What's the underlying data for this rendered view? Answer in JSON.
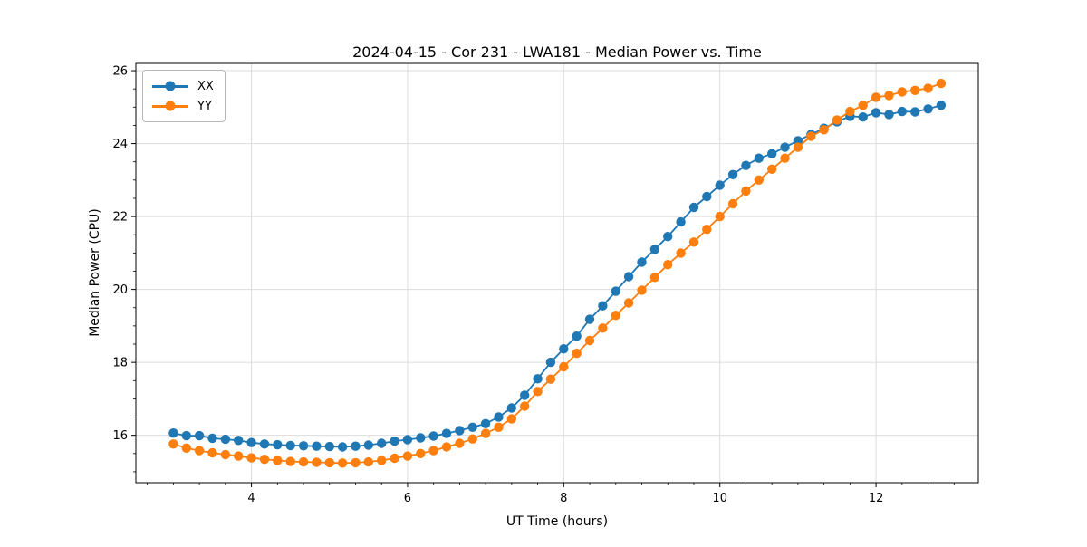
{
  "chart_data": {
    "type": "line",
    "title": "2024-04-15 - Cor 231 - LWA181 - Median Power vs. Time",
    "xlabel": "UT Time (hours)",
    "ylabel": "Median Power (CPU)",
    "grid": true,
    "legend_position": "upper left",
    "marker": "circle",
    "xlim": [
      2.52,
      13.31
    ],
    "ylim": [
      14.7,
      26.2
    ],
    "x_ticks": [
      4,
      6,
      8,
      10,
      12
    ],
    "y_ticks": [
      16,
      18,
      20,
      22,
      24,
      26
    ],
    "grid_color": "#dcdcdc",
    "axis_color": "#000000",
    "x": [
      3.0,
      3.167,
      3.333,
      3.5,
      3.667,
      3.833,
      4.0,
      4.167,
      4.333,
      4.5,
      4.667,
      4.833,
      5.0,
      5.167,
      5.333,
      5.5,
      5.667,
      5.833,
      6.0,
      6.167,
      6.333,
      6.5,
      6.667,
      6.833,
      7.0,
      7.167,
      7.333,
      7.5,
      7.667,
      7.833,
      8.0,
      8.167,
      8.333,
      8.5,
      8.667,
      8.833,
      9.0,
      9.167,
      9.333,
      9.5,
      9.667,
      9.833,
      10.0,
      10.167,
      10.333,
      10.5,
      10.667,
      10.833,
      11.0,
      11.167,
      11.333,
      11.5,
      11.667,
      11.833,
      12.0,
      12.167,
      12.333,
      12.5,
      12.667,
      12.833
    ],
    "series": [
      {
        "name": "XX",
        "color": "#1f77b4",
        "values": [
          16.06,
          15.99,
          15.99,
          15.92,
          15.89,
          15.86,
          15.8,
          15.76,
          15.74,
          15.72,
          15.71,
          15.7,
          15.69,
          15.68,
          15.7,
          15.73,
          15.78,
          15.84,
          15.88,
          15.93,
          15.98,
          16.05,
          16.13,
          16.22,
          16.32,
          16.5,
          16.75,
          17.1,
          17.55,
          18.0,
          18.37,
          18.72,
          19.18,
          19.55,
          19.95,
          20.35,
          20.75,
          21.1,
          21.45,
          21.85,
          22.25,
          22.55,
          22.86,
          23.15,
          23.4,
          23.6,
          23.72,
          23.9,
          24.08,
          24.25,
          24.42,
          24.6,
          24.75,
          24.73,
          24.85,
          24.8,
          24.88,
          24.87,
          24.95,
          25.05
        ]
      },
      {
        "name": "YY",
        "color": "#ff7f0e",
        "values": [
          15.76,
          15.65,
          15.58,
          15.52,
          15.47,
          15.43,
          15.38,
          15.34,
          15.31,
          15.28,
          15.27,
          15.26,
          15.25,
          15.24,
          15.25,
          15.27,
          15.31,
          15.37,
          15.43,
          15.5,
          15.58,
          15.68,
          15.78,
          15.9,
          16.05,
          16.22,
          16.45,
          16.8,
          17.2,
          17.54,
          17.88,
          18.25,
          18.6,
          18.94,
          19.29,
          19.63,
          19.98,
          20.33,
          20.68,
          21.0,
          21.3,
          21.65,
          22.0,
          22.35,
          22.7,
          23.0,
          23.3,
          23.6,
          23.9,
          24.2,
          24.38,
          24.65,
          24.88,
          25.05,
          25.27,
          25.32,
          25.42,
          25.46,
          25.52,
          25.65
        ]
      }
    ]
  }
}
